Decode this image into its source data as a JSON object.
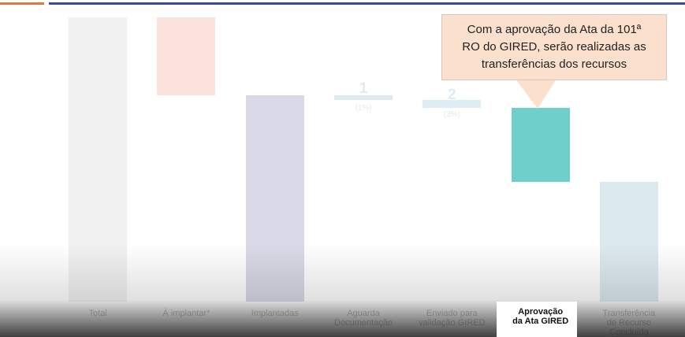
{
  "chart_data": {
    "type": "waterfall",
    "categories": [
      "Total",
      "À implantar*",
      "Implantadas",
      "Aguarda\nDocumentação",
      "Enviado para\nvalidação GIRED",
      "Aprovação\nda Ata GIRED",
      "Transferência\nde Recurso\nConcluída"
    ],
    "values": [
      69,
      19,
      50,
      1,
      2,
      18,
      29
    ],
    "measures": [
      "total",
      "decrease",
      "total",
      "decrease",
      "decrease",
      "decrease",
      "total"
    ],
    "percent_labels": [
      "(100%)",
      "(28%)",
      "(72%)",
      "(1%)",
      "(3%)",
      "(26%)",
      "(42%)"
    ],
    "colors": [
      "#f1f1f1",
      "#fbe2da",
      "#d9d9e7",
      "#dfeaf0",
      "#dcedf3",
      "#6fcfcb",
      "#dce9ef"
    ],
    "highlight": 5,
    "ylim": [
      0,
      69
    ],
    "annotation": "Com a aprovação da Ata da 101ª\nRO do GIRED, serão realizadas as\ntransferências dos recursos"
  }
}
